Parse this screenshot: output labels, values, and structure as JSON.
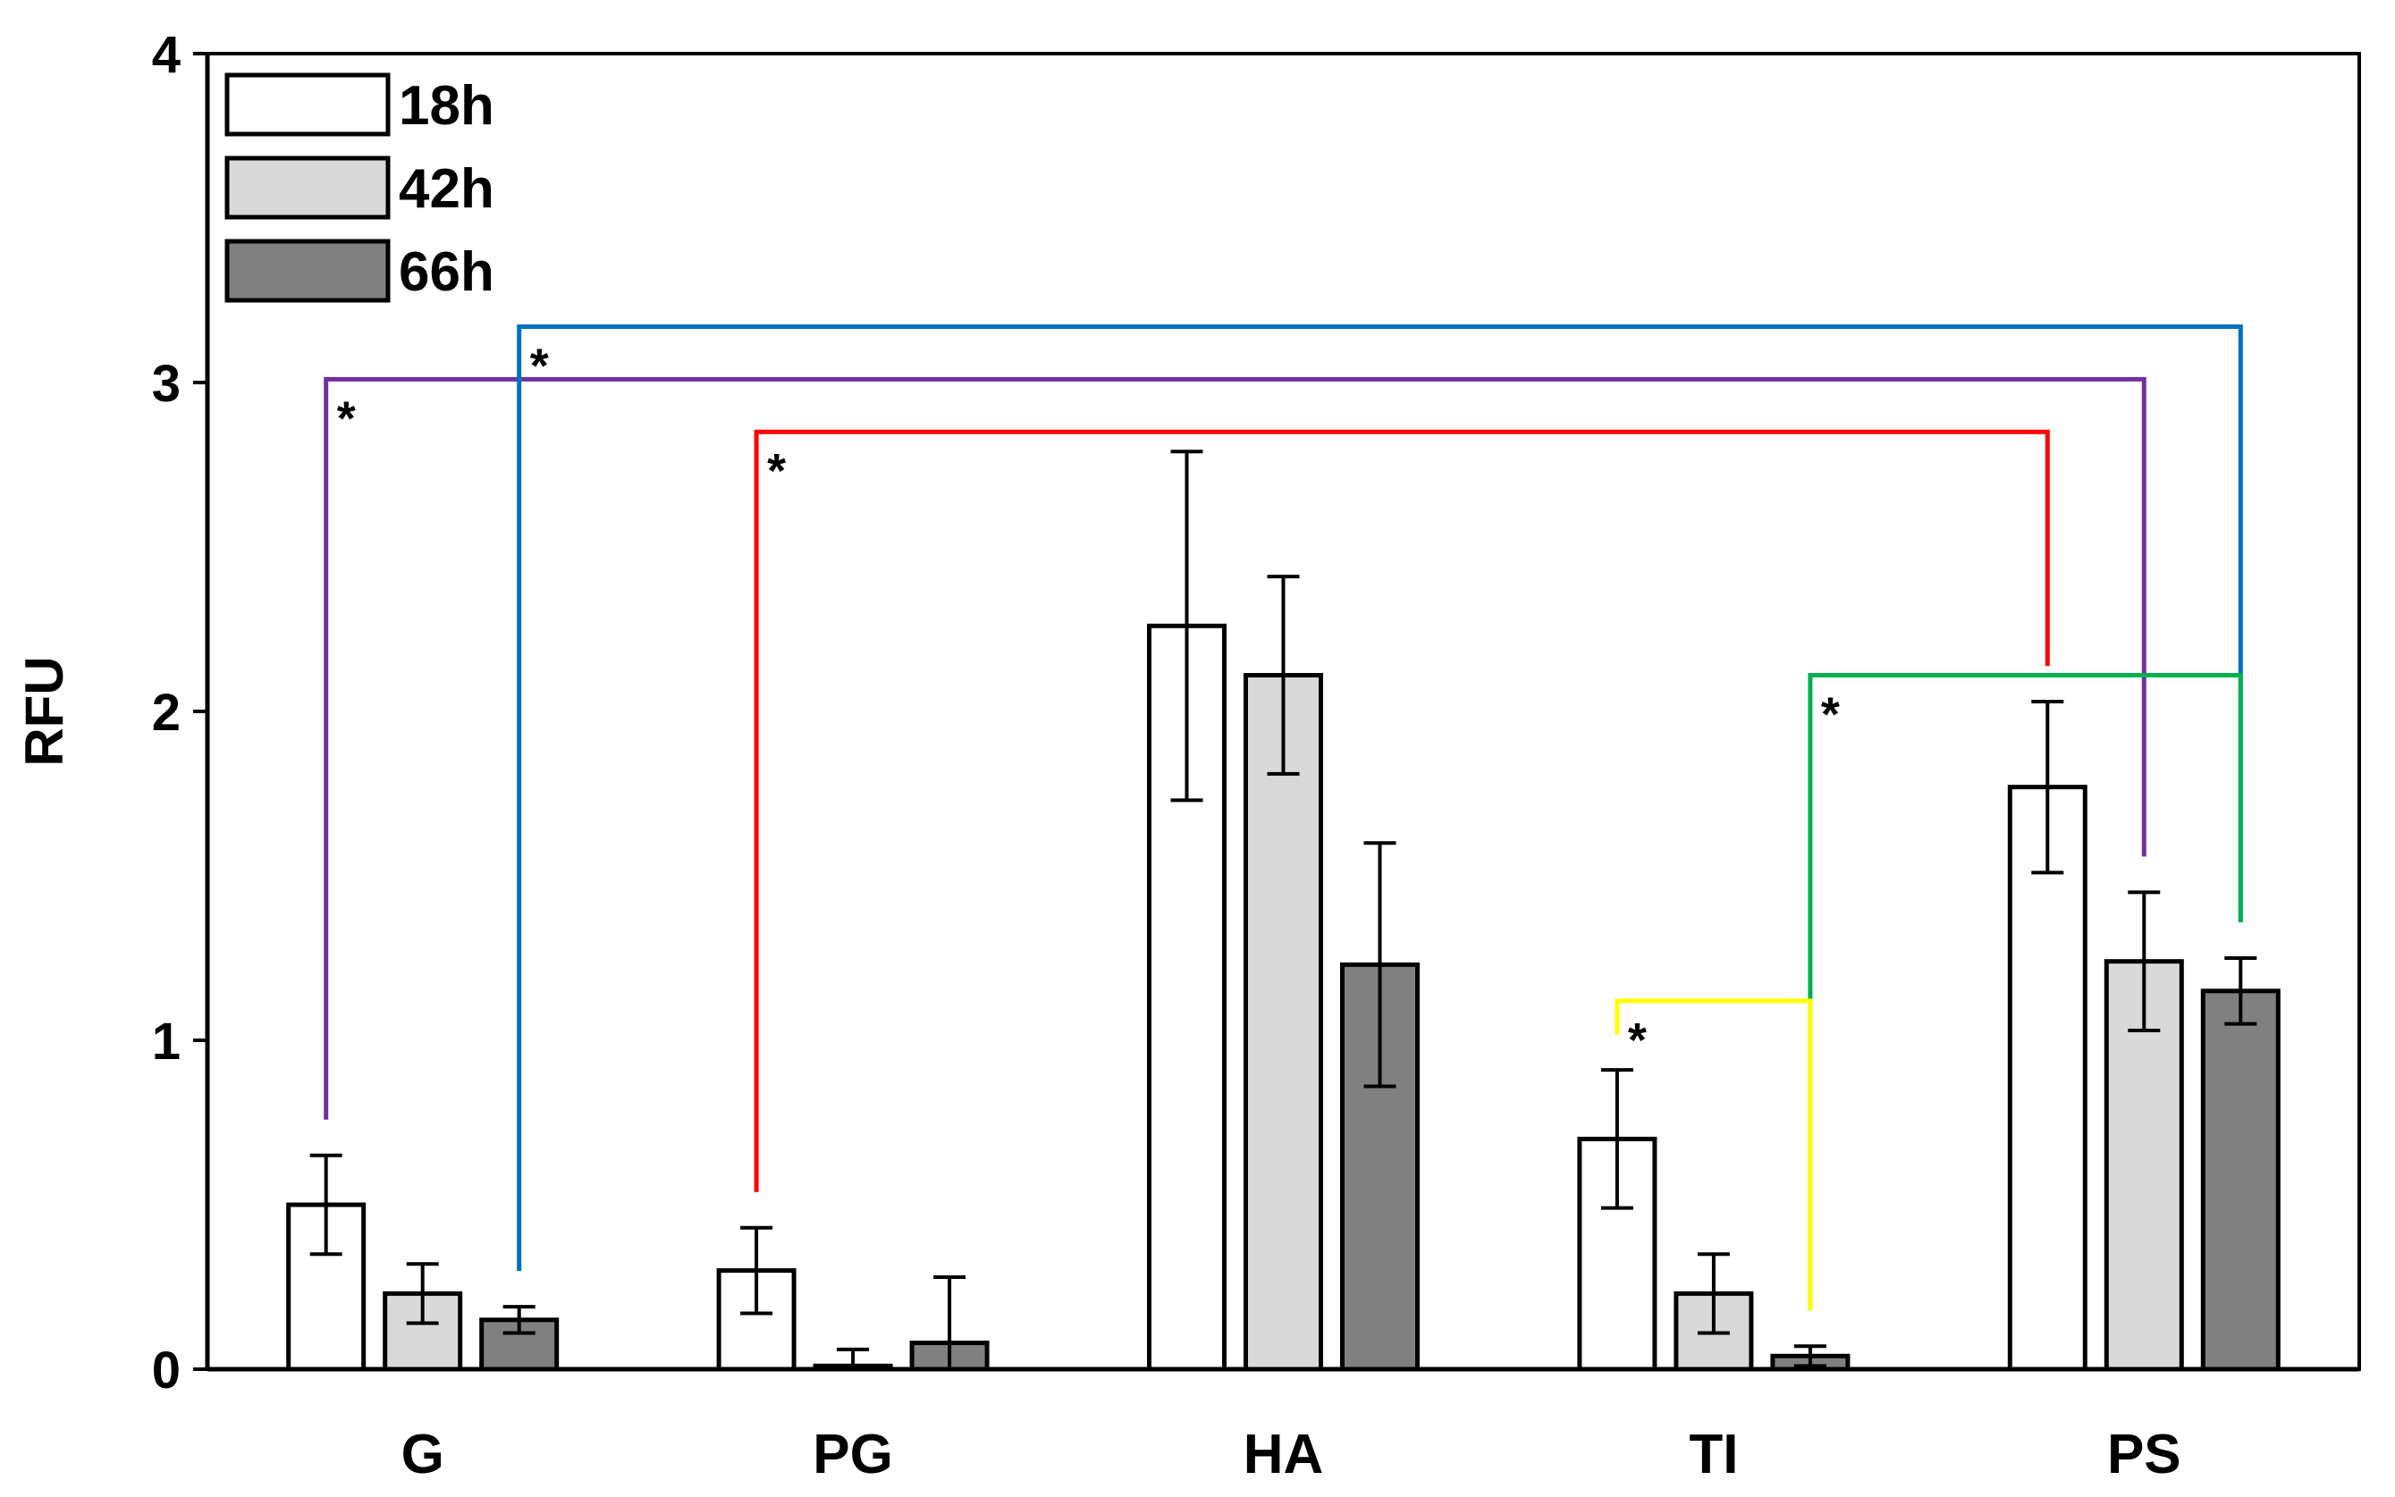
{
  "chart_data": {
    "type": "bar",
    "title": "",
    "xlabel": "",
    "ylabel": "RFU",
    "ylim": [
      0,
      4
    ],
    "yticks": [
      "0",
      "1",
      "2",
      "3",
      "4"
    ],
    "categories": [
      "G",
      "PG",
      "HA",
      "TI",
      "PS"
    ],
    "series": [
      {
        "name": "18h",
        "color": "#ffffff",
        "values": [
          0.5,
          0.3,
          2.26,
          0.7,
          1.77
        ],
        "errors": [
          0.15,
          0.13,
          0.53,
          0.21,
          0.26
        ]
      },
      {
        "name": "42h",
        "color": "#d9d9d9",
        "values": [
          0.23,
          0.01,
          2.11,
          0.23,
          1.24
        ],
        "errors": [
          0.09,
          0.05,
          0.3,
          0.12,
          0.21
        ]
      },
      {
        "name": "66h",
        "color": "#808080",
        "values": [
          0.15,
          0.08,
          1.23,
          0.04,
          1.15
        ],
        "errors": [
          0.04,
          0.2,
          0.37,
          0.03,
          0.1
        ]
      }
    ],
    "significance": [
      {
        "label": "*",
        "color": "#7030a0",
        "from": [
          "G",
          "18h"
        ],
        "to": [
          "PS",
          "42h"
        ],
        "level": 3.01
      },
      {
        "label": "*",
        "color": "#0070c0",
        "from": [
          "G",
          "66h"
        ],
        "to": [
          "PS",
          "66h"
        ],
        "level": 3.17
      },
      {
        "label": "*",
        "color": "#ff0000",
        "from": [
          "PG",
          "18h"
        ],
        "to": [
          "PS",
          "18h"
        ],
        "level": 2.85
      },
      {
        "label": "*",
        "color": "#00b050",
        "from": [
          "TI",
          "66h"
        ],
        "to": [
          "PS",
          "66h"
        ],
        "level": 2.11
      },
      {
        "label": "*",
        "color": "#ffff00",
        "from": [
          "TI",
          "18h"
        ],
        "to": [
          "TI",
          "66h"
        ],
        "level": 1.12
      }
    ]
  }
}
